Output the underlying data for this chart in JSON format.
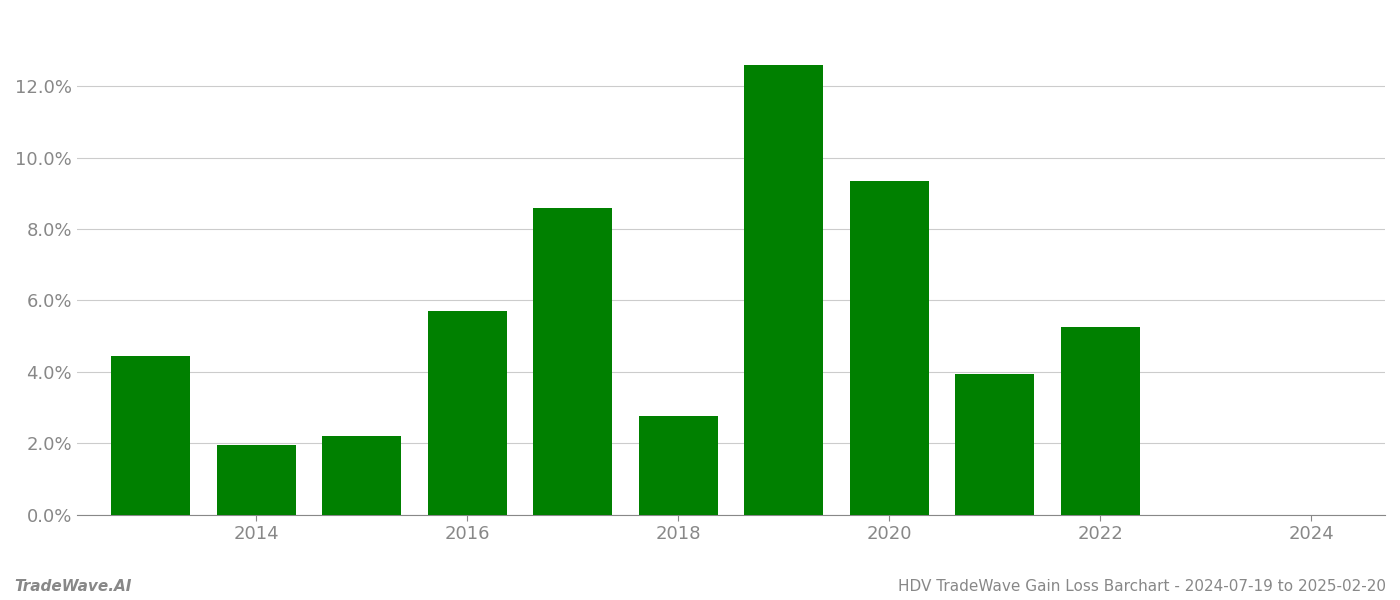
{
  "years": [
    2013,
    2014,
    2015,
    2016,
    2017,
    2018,
    2019,
    2020,
    2021,
    2022,
    2023
  ],
  "values": [
    0.0445,
    0.0195,
    0.022,
    0.057,
    0.086,
    0.0275,
    0.126,
    0.0935,
    0.0395,
    0.0525,
    0.0
  ],
  "bar_color": "#008000",
  "background_color": "#ffffff",
  "footer_left": "TradeWave.AI",
  "footer_right": "HDV TradeWave Gain Loss Barchart - 2024-07-19 to 2025-02-20",
  "ylim": [
    0,
    0.14
  ],
  "yticks": [
    0.0,
    0.02,
    0.04,
    0.06,
    0.08,
    0.1,
    0.12
  ],
  "xticks": [
    2014,
    2016,
    2018,
    2020,
    2022,
    2024
  ],
  "xlim": [
    2012.3,
    2024.7
  ],
  "grid_color": "#cccccc",
  "tick_color": "#888888",
  "footer_fontsize": 11,
  "bar_width": 0.75,
  "tick_labelsize": 13
}
